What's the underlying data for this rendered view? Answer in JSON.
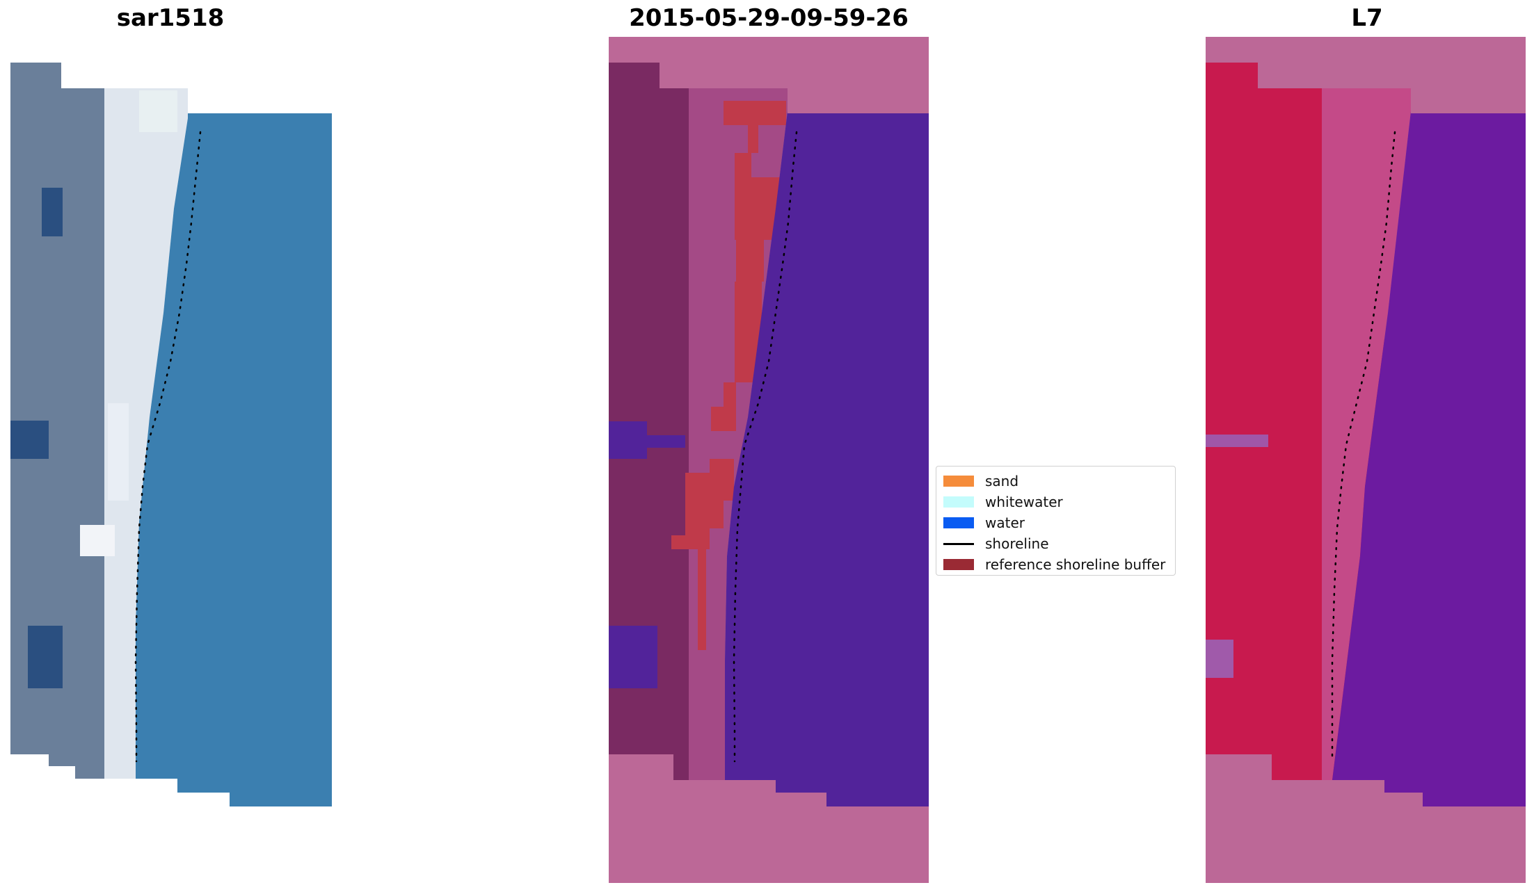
{
  "panels": [
    {
      "id": "rgb",
      "title": "sar1518"
    },
    {
      "id": "classified",
      "title": "2015-05-29-09-59-26"
    },
    {
      "id": "index",
      "title": "L7"
    }
  ],
  "legend": {
    "items": [
      {
        "label": "sand",
        "color": "#f58c3b",
        "kind": "patch"
      },
      {
        "label": "whitewater",
        "color": "#c4fcfc",
        "kind": "patch"
      },
      {
        "label": "water",
        "color": "#0a5cf2",
        "kind": "patch"
      },
      {
        "label": "shoreline",
        "color": "#000000",
        "kind": "line"
      },
      {
        "label": "reference shoreline buffer",
        "color": "#9a2a34",
        "kind": "patch"
      }
    ]
  },
  "colors": {
    "rgb_land": "#6a7f9a",
    "rgb_beach": "#dfe6ee",
    "rgb_water": "#3b7fb0",
    "mask_pink": "#bc6897",
    "classified_land": "#7a2a62",
    "classified_buffer": "#c03a4a",
    "classified_water": "#52239a",
    "index_land": "#c81a4e",
    "index_water": "#6c1ba0",
    "shoreline_dots": "#000000"
  }
}
